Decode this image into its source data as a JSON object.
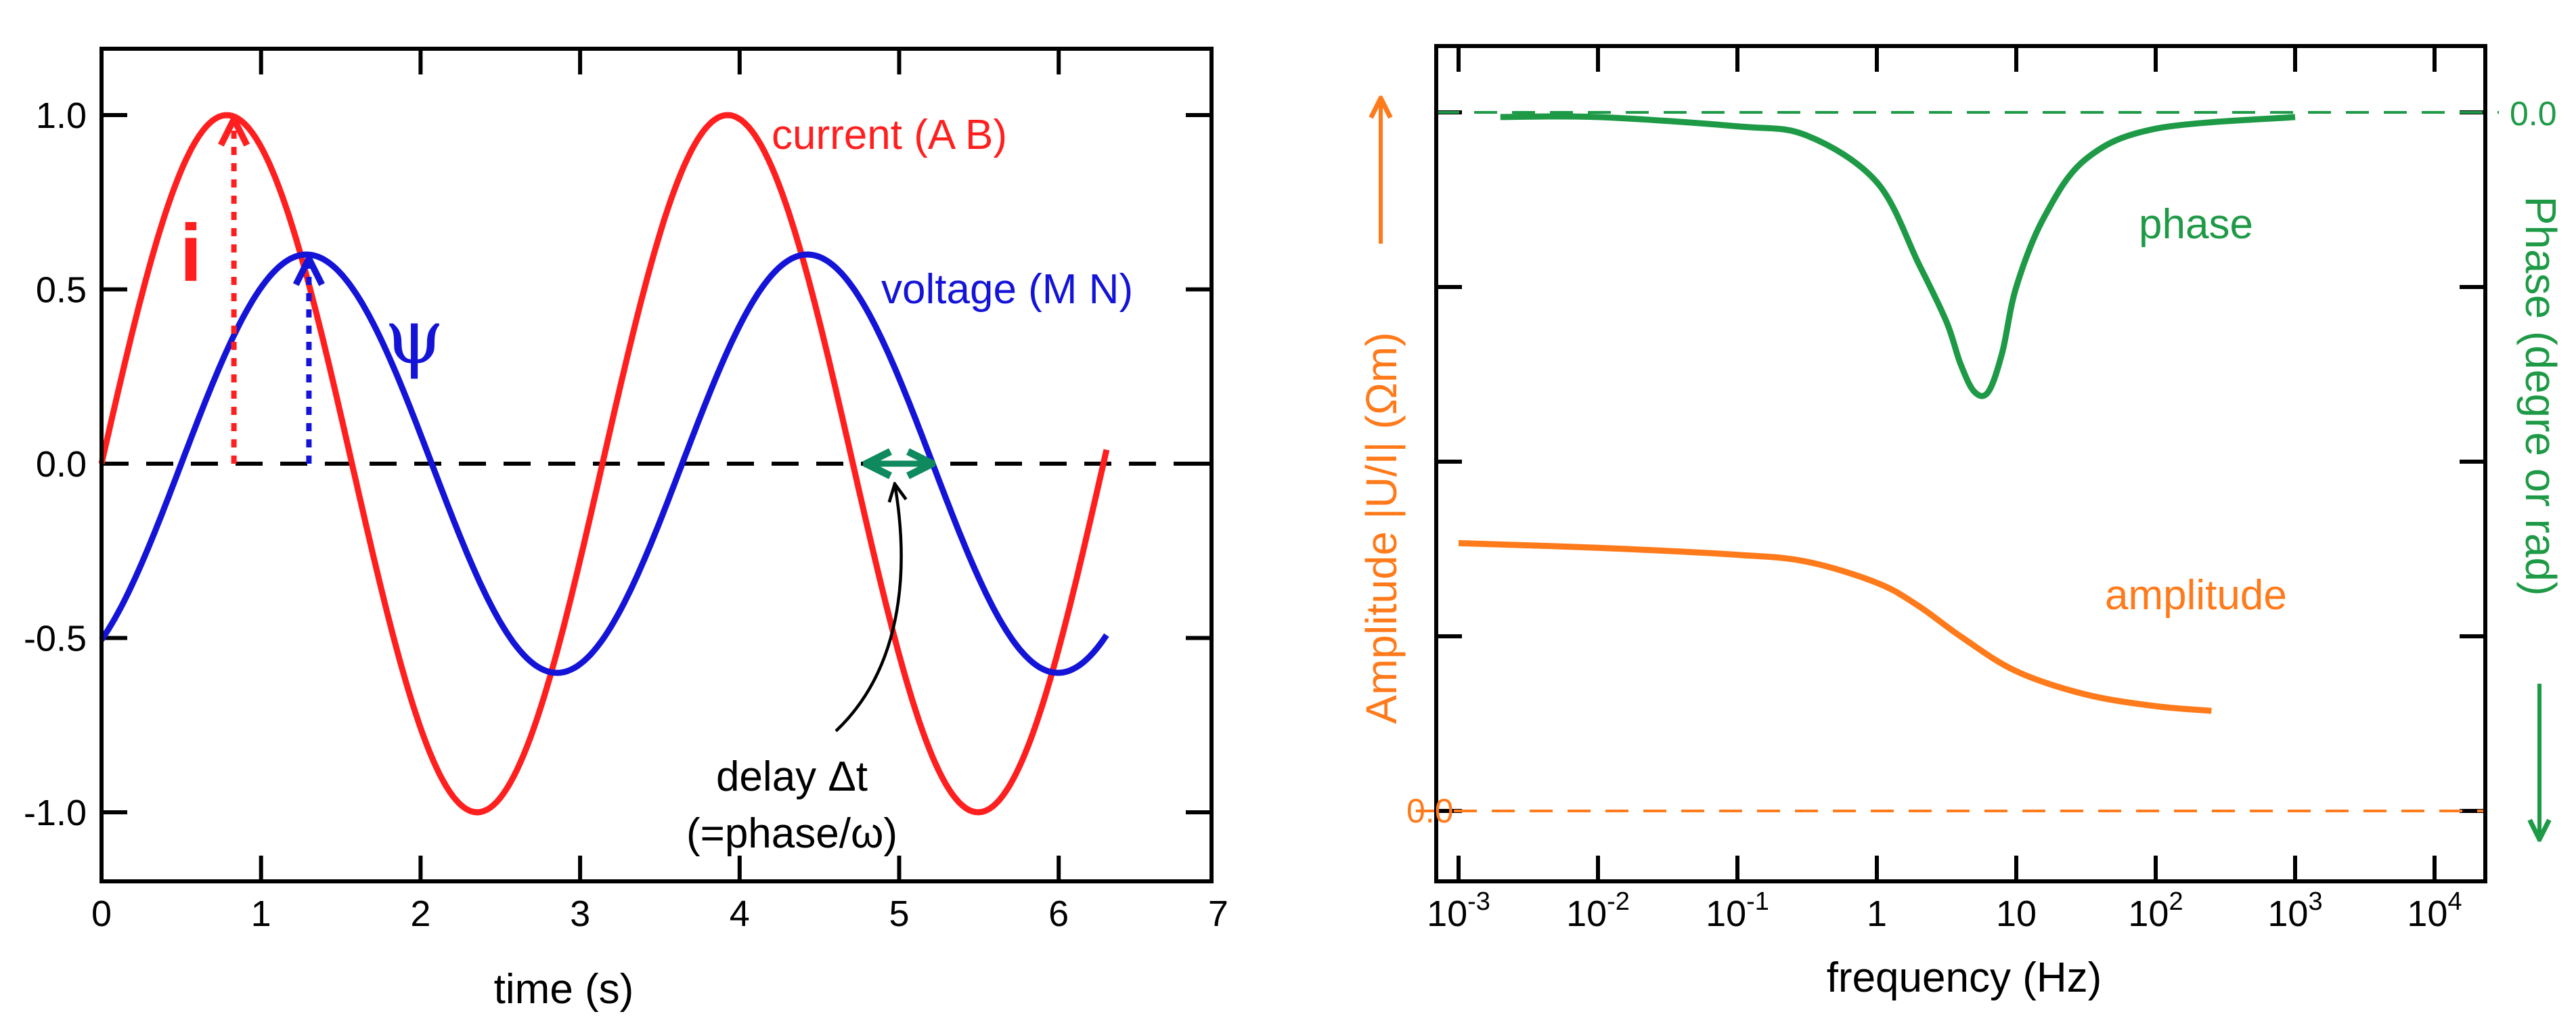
{
  "colors": {
    "current": "#ff1f1f",
    "voltage": "#1414d8",
    "delay": "#0f8a5f",
    "phase": "#1e9a46",
    "amplitude": "#ff7a1a",
    "axis": "#000000"
  },
  "chart_data": [
    {
      "type": "line",
      "title": "",
      "xlabel": "time (s)",
      "ylabel": "",
      "xlim": [
        0,
        7
      ],
      "ylim": [
        -1.2,
        1.2
      ],
      "x_ticks": [
        0,
        1,
        2,
        3,
        4,
        5,
        6,
        7
      ],
      "x_tick_labels": [
        "0",
        "1",
        "2",
        "3",
        "4",
        "5",
        "6",
        "7"
      ],
      "y_ticks": [
        1.0,
        0.5,
        0.0,
        -0.5,
        -1.0
      ],
      "y_tick_labels": [
        "1.0",
        "0.5",
        "0.0",
        "-0.5",
        "-1.0"
      ],
      "series": [
        {
          "name": "current",
          "label": "current (A  B)",
          "function": "sin",
          "amplitude": 1.0,
          "period": 3.14,
          "phase_shift": 0,
          "x_range": [
            0,
            6.3
          ]
        },
        {
          "name": "voltage",
          "label": "voltage (M N)",
          "function": "sin",
          "amplitude": 0.6,
          "period": 3.14,
          "phase_shift": 0.5,
          "x_range": [
            0,
            6.3
          ]
        }
      ],
      "annotations": {
        "i_label": "i",
        "psi_label": "ψ",
        "delay_label": "delay Δt",
        "delay_formula": "(=phase/ω)",
        "i_arrow": {
          "x": 0.83,
          "y_from": 0.0,
          "y_to": 1.0
        },
        "psi_arrow": {
          "x": 1.3,
          "y_from": 0.0,
          "y_to": 0.6
        },
        "delay_arrow": {
          "x_from": 4.75,
          "x_to": 5.25,
          "y": 0.0
        }
      }
    },
    {
      "type": "line",
      "title": "",
      "xlabel": "frequency (Hz)",
      "ylabel": "Amplitude |U/I| (Ωm)",
      "y2label": "Phase (degre or rad)",
      "x_scale": "log",
      "xlim_exponent": [
        -3,
        4
      ],
      "x_tick_base": "10",
      "x_tick_exponents": [
        "-3",
        "-2",
        "-1",
        "",
        "",
        "2",
        "3",
        "4"
      ],
      "x_tick_plain_labels": [
        "",
        "",
        "",
        "1",
        "10",
        "",
        "",
        ""
      ],
      "zero_label_left": "0.0",
      "zero_label_right": "0.0",
      "series": [
        {
          "name": "phase",
          "label": "phase",
          "points": [
            [
              -2.7,
              2.98
            ],
            [
              -2.0,
              2.98
            ],
            [
              -1.0,
              2.94
            ],
            [
              -0.5,
              2.9
            ],
            [
              0.0,
              2.7
            ],
            [
              0.3,
              2.35
            ],
            [
              0.5,
              2.1
            ],
            [
              0.6,
              1.92
            ],
            [
              0.7,
              1.8
            ],
            [
              0.8,
              1.8
            ],
            [
              0.9,
              1.97
            ],
            [
              1.0,
              2.25
            ],
            [
              1.2,
              2.55
            ],
            [
              1.5,
              2.8
            ],
            [
              2.0,
              2.93
            ],
            [
              3.0,
              2.98
            ]
          ]
        },
        {
          "name": "amplitude",
          "label": "amplitude",
          "points": [
            [
              -3.0,
              1.15
            ],
            [
              -2.0,
              1.13
            ],
            [
              -1.0,
              1.1
            ],
            [
              -0.5,
              1.07
            ],
            [
              0.0,
              0.98
            ],
            [
              0.3,
              0.88
            ],
            [
              0.6,
              0.75
            ],
            [
              1.0,
              0.6
            ],
            [
              1.5,
              0.5
            ],
            [
              2.0,
              0.45
            ],
            [
              2.4,
              0.43
            ]
          ]
        }
      ]
    }
  ]
}
